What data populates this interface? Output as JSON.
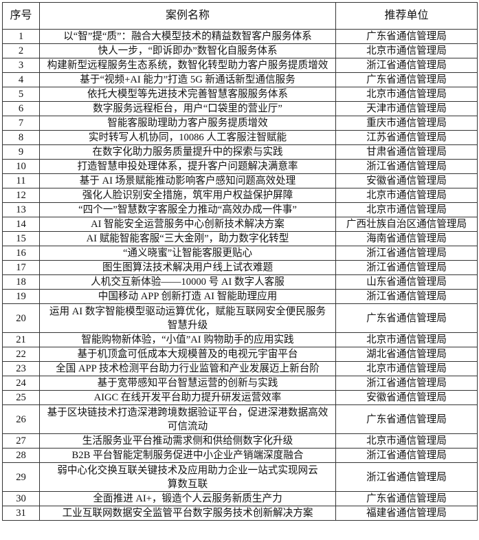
{
  "header": {
    "no": "序号",
    "name": "案例名称",
    "unit": "推荐单位"
  },
  "rows": [
    {
      "no": "1",
      "name": [
        "以“智”提“质”：融合大模型技术的精益数智客户服务体系"
      ],
      "unit": "广东省通信管理局"
    },
    {
      "no": "2",
      "name": [
        "快人一步，“即诉即办”数智化自服务体系"
      ],
      "unit": "北京市通信管理局"
    },
    {
      "no": "3",
      "name": [
        "构建新型远程服务生态系统，数智化转型助力客户服务提质增效"
      ],
      "unit": "浙江省通信管理局"
    },
    {
      "no": "4",
      "name": [
        "基于“视频+AI 能力”打造 5G 新通话新型通信服务"
      ],
      "unit": "广东省通信管理局"
    },
    {
      "no": "5",
      "name": [
        "依托大模型等先进技术完善智慧客服服务体系"
      ],
      "unit": "北京市通信管理局"
    },
    {
      "no": "6",
      "name": [
        "数字服务远程柜台，用户“口袋里的营业厅”"
      ],
      "unit": "天津市通信管理局"
    },
    {
      "no": "7",
      "name": [
        "智能客服助理助力客户服务提质增效"
      ],
      "unit": "重庆市通信管理局"
    },
    {
      "no": "8",
      "name": [
        "实时转写人机协同，10086 人工客服注智赋能"
      ],
      "unit": "江苏省通信管理局"
    },
    {
      "no": "9",
      "name": [
        "在数字化助力服务质量提升中的探索与实践"
      ],
      "unit": "甘肃省通信管理局"
    },
    {
      "no": "10",
      "name": [
        "打造智慧申投处理体系，提升客户问题解决满意率"
      ],
      "unit": "浙江省通信管理局"
    },
    {
      "no": "11",
      "name": [
        "基于 AI 场景赋能推动影响客户感知问题高效处理"
      ],
      "unit": "安徽省通信管理局"
    },
    {
      "no": "12",
      "name": [
        "强化人脸识别安全措施，筑牢用户权益保护屏障"
      ],
      "unit": "北京市通信管理局"
    },
    {
      "no": "13",
      "name": [
        "“四个一”智慧数字客服全力推动“高效办成一件事”"
      ],
      "unit": "北京市通信管理局"
    },
    {
      "no": "14",
      "name": [
        "AI 智能安全运营服务中心创新技术解决方案"
      ],
      "unit": "广西壮族自治区通信管理局"
    },
    {
      "no": "15",
      "name": [
        "AI 赋能智能客服“三大金刚”，助力数字化转型"
      ],
      "unit": "海南省通信管理局"
    },
    {
      "no": "16",
      "name": [
        "“通义晓蜜”让智能客服更贴心"
      ],
      "unit": "浙江省通信管理局"
    },
    {
      "no": "17",
      "name": [
        "图生图算法技术解决用户线上试衣难题"
      ],
      "unit": "浙江省通信管理局"
    },
    {
      "no": "18",
      "name": [
        "人机交互新体验——10000 号 AI 数字人客服"
      ],
      "unit": "山东省通信管理局"
    },
    {
      "no": "19",
      "name": [
        "中国移动 APP 创新打造 AI 智能助理应用"
      ],
      "unit": "浙江省通信管理局"
    },
    {
      "no": "20",
      "name": [
        "运用 AI 数字智能模型驱动运算优化，赋能互联网安全便民服务",
        "智慧升级"
      ],
      "unit": "广东省通信管理局"
    },
    {
      "no": "21",
      "name": [
        "智能购物新体验，“小值”AI 购物助手的应用实践"
      ],
      "unit": "北京市通信管理局"
    },
    {
      "no": "22",
      "name": [
        "基于机顶盒可低成本大规模普及的电视元宇宙平台"
      ],
      "unit": "湖北省通信管理局"
    },
    {
      "no": "23",
      "name": [
        "全国 APP 技术检测平台助力行业监管和产业发展迈上新台阶"
      ],
      "unit": "北京市通信管理局"
    },
    {
      "no": "24",
      "name": [
        "基于宽带感知平台智慧运营的创新与实践"
      ],
      "unit": "浙江省通信管理局"
    },
    {
      "no": "25",
      "name": [
        "AIGC 在线开发平台助力提升研发运营效率"
      ],
      "unit": "安徽省通信管理局"
    },
    {
      "no": "26",
      "name": [
        "基于区块链技术打造深港跨境数据验证平台，促进深港数据高效",
        "可信流动"
      ],
      "unit": "广东省通信管理局"
    },
    {
      "no": "27",
      "name": [
        "生活服务业平台推动需求侧和供给侧数字化升级"
      ],
      "unit": "北京市通信管理局"
    },
    {
      "no": "28",
      "name": [
        "B2B 平台智能定制服务促进中小企业产销端深度融合"
      ],
      "unit": "浙江省通信管理局"
    },
    {
      "no": "29",
      "name": [
        "弱中心化交换互联关键技术及应用助力企业一站式实现网云",
        "算数互联"
      ],
      "unit": "浙江省通信管理局"
    },
    {
      "no": "30",
      "name": [
        "全面推进 AI+，锻造个人云服务新质生产力"
      ],
      "unit": "广东省通信管理局"
    },
    {
      "no": "31",
      "name": [
        "工业互联网数据安全监管平台数字服务技术创新解决方案"
      ],
      "unit": "福建省通信管理局"
    }
  ]
}
